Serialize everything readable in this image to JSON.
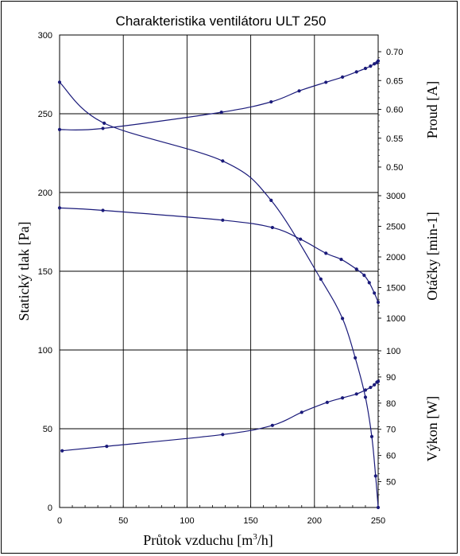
{
  "chart_data": {
    "type": "line",
    "title": "Charakteristika ventilátoru ULT 250",
    "xlabel": "Průtok vzduchu [m³/h]",
    "xlabel_main": "Průtok vzduchu [m",
    "xlabel_sup": "3",
    "xlabel_tail": "/h]",
    "x_ticks": [
      "0",
      "50",
      "100",
      "150",
      "200",
      "250"
    ],
    "xlim": [
      0,
      250
    ],
    "grid": true,
    "axes": {
      "pressure": {
        "label": "Statický tlak [Pa]",
        "range": [
          0,
          300
        ],
        "ticks": [
          "0",
          "50",
          "100",
          "150",
          "200",
          "250",
          "300"
        ]
      },
      "current": {
        "label": "Proud [A]",
        "range": [
          0.5,
          0.7
        ],
        "ticks": [
          "0.50",
          "0.55",
          "0.60",
          "0.65",
          "0.70"
        ]
      },
      "speed": {
        "label": "Otáčky [min-1]",
        "range": [
          1000,
          3000
        ],
        "ticks": [
          "1000",
          "1500",
          "2000",
          "2500",
          "3000"
        ]
      },
      "power": {
        "label": "Výkon [W]",
        "range": [
          45,
          100
        ],
        "ticks": [
          "50",
          "60",
          "70",
          "80",
          "90",
          "100"
        ]
      }
    },
    "series": [
      {
        "axis": "pressure",
        "x": [
          0,
          35,
          128,
          166,
          205,
          222,
          232,
          240,
          245,
          248,
          250
        ],
        "y": [
          270,
          244,
          220,
          195,
          145,
          120,
          95,
          70,
          45,
          20,
          0
        ]
      },
      {
        "axis": "current",
        "x": [
          0,
          34,
          127,
          166,
          188,
          209,
          222,
          233,
          240,
          244,
          247,
          249,
          250
        ],
        "y": [
          0.565,
          0.567,
          0.595,
          0.613,
          0.632,
          0.647,
          0.656,
          0.665,
          0.671,
          0.675,
          0.679,
          0.681,
          0.684
        ]
      },
      {
        "axis": "speed",
        "x": [
          0,
          34,
          128,
          167,
          189,
          209,
          221,
          233,
          239,
          243,
          247,
          250
        ],
        "y": [
          2800,
          2760,
          2600,
          2480,
          2290,
          2060,
          1960,
          1800,
          1700,
          1580,
          1410,
          1260
        ]
      },
      {
        "axis": "power",
        "x": [
          2,
          37,
          128,
          167,
          190,
          210,
          222,
          233,
          240,
          244,
          247,
          249,
          250
        ],
        "y": [
          61.8,
          63.5,
          68.0,
          71.5,
          76.5,
          80.3,
          82.0,
          83.5,
          85.0,
          86.0,
          87.0,
          88.0,
          88.3
        ]
      }
    ],
    "colors": {
      "line": "#1a1a7a",
      "marker": "#1a1a7a",
      "grid": "#000000"
    }
  }
}
